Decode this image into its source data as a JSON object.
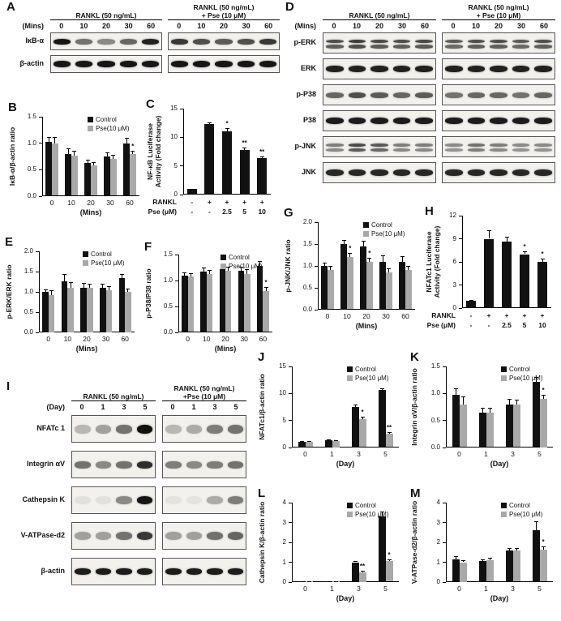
{
  "legend": {
    "control": "Control",
    "pse": "Pse(10 μM)"
  },
  "colors": {
    "control": "#111111",
    "pse": "#a9a9a9",
    "axis": "#000000"
  },
  "blots": [
    {
      "id": "A",
      "letter": "A",
      "time_label": "(Mins)",
      "groups": [
        {
          "title": [
            "RANKL (50 ng/mL)"
          ]
        },
        {
          "title": [
            "RANKL (50 ng/mL)",
            "+ Pse (10 μM)"
          ]
        }
      ],
      "lanes": [
        "0",
        "10",
        "20",
        "30",
        "60"
      ],
      "rows": [
        {
          "label": "IκB-α",
          "bh": 7,
          "double": false,
          "bands": [
            [
              0.95,
              0.55,
              0.45,
              0.6,
              0.9
            ],
            [
              0.8,
              0.7,
              0.65,
              0.7,
              0.8
            ]
          ]
        },
        {
          "label": "β-actin",
          "bh": 8,
          "double": false,
          "bands": [
            [
              0.95,
              0.95,
              0.95,
              0.95,
              0.95
            ],
            [
              0.95,
              0.95,
              0.95,
              0.95,
              0.95
            ]
          ]
        }
      ]
    },
    {
      "id": "D",
      "letter": "D",
      "time_label": "(Mins)",
      "groups": [
        {
          "title": [
            "RANKL (50 ng/mL)"
          ]
        },
        {
          "title": [
            "RANKL (50 ng/mL)",
            "+ Pse (10 μM)"
          ]
        }
      ],
      "lanes": [
        "0",
        "10",
        "20",
        "30",
        "60"
      ],
      "rows": [
        {
          "label": "p-ERK",
          "bh": 9,
          "double": true,
          "bands": [
            [
              0.7,
              0.78,
              0.72,
              0.7,
              0.72
            ],
            [
              0.65,
              0.7,
              0.7,
              0.65,
              0.7
            ]
          ]
        },
        {
          "label": "ERK",
          "bh": 8,
          "double": false,
          "bands": [
            [
              0.9,
              0.9,
              0.9,
              0.9,
              0.9
            ],
            [
              0.9,
              0.9,
              0.9,
              0.9,
              0.9
            ]
          ]
        },
        {
          "label": "p-P38",
          "bh": 7,
          "double": false,
          "bands": [
            [
              0.6,
              0.7,
              0.65,
              0.6,
              0.65
            ],
            [
              0.55,
              0.6,
              0.6,
              0.55,
              0.6
            ]
          ]
        },
        {
          "label": "P38",
          "bh": 8,
          "double": false,
          "bands": [
            [
              0.92,
              0.92,
              0.92,
              0.92,
              0.92
            ],
            [
              0.92,
              0.92,
              0.92,
              0.92,
              0.92
            ]
          ]
        },
        {
          "label": "p-JNK",
          "bh": 8,
          "double": true,
          "bands": [
            [
              0.5,
              0.72,
              0.66,
              0.5,
              0.5
            ],
            [
              0.45,
              0.55,
              0.5,
              0.45,
              0.45
            ]
          ]
        },
        {
          "label": "JNK",
          "bh": 8,
          "double": false,
          "bands": [
            [
              0.88,
              0.88,
              0.88,
              0.88,
              0.88
            ],
            [
              0.88,
              0.88,
              0.88,
              0.88,
              0.88
            ]
          ]
        }
      ]
    },
    {
      "id": "I",
      "letter": "I",
      "time_label": "(Day)",
      "groups": [
        {
          "title": [
            "RANKL (50 ng/mL)"
          ]
        },
        {
          "title": [
            "RANKL (50 ng/mL)",
            "+Pse (10 μM)"
          ]
        }
      ],
      "lanes": [
        "0",
        "1",
        "3",
        "5"
      ],
      "rows": [
        {
          "label": "NFATc 1",
          "bh": 11,
          "double": false,
          "bands": [
            [
              0.25,
              0.35,
              0.55,
              0.97
            ],
            [
              0.25,
              0.3,
              0.5,
              0.55
            ]
          ]
        },
        {
          "label": "Integrin αV",
          "bh": 9,
          "double": false,
          "bands": [
            [
              0.55,
              0.45,
              0.55,
              0.85
            ],
            [
              0.5,
              0.45,
              0.5,
              0.55
            ]
          ]
        },
        {
          "label": "Cathepsin K",
          "bh": 10,
          "double": false,
          "bands": [
            [
              0.07,
              0.07,
              0.45,
              0.95
            ],
            [
              0.06,
              0.06,
              0.3,
              0.5
            ]
          ]
        },
        {
          "label": "V-ATPase-d2",
          "bh": 10,
          "double": false,
          "bands": [
            [
              0.35,
              0.35,
              0.55,
              0.8
            ],
            [
              0.35,
              0.35,
              0.55,
              0.6
            ]
          ]
        },
        {
          "label": "β-actin",
          "bh": 8,
          "double": false,
          "bands": [
            [
              0.92,
              0.92,
              0.92,
              0.92
            ],
            [
              0.92,
              0.92,
              0.92,
              0.92
            ]
          ]
        }
      ]
    }
  ],
  "chart_data": [
    {
      "id": "B",
      "letter": "B",
      "type": "bar",
      "ylabel": "IκB-α/β-actin ratio",
      "xlabel": "(Mins)",
      "categories": [
        "0",
        "10",
        "20",
        "30",
        "60"
      ],
      "ylim": [
        0,
        1.5
      ],
      "yticks": [
        "0.0",
        "0.5",
        "1.0",
        "1.5"
      ],
      "legend": true,
      "series": [
        {
          "name": "Control",
          "color": "#111111",
          "values": [
            1.02,
            0.8,
            0.63,
            0.75,
            1.0
          ],
          "errors": [
            0.1,
            0.1,
            0.06,
            0.08,
            0.1
          ],
          "sig": [
            "",
            "",
            "",
            "",
            ""
          ]
        },
        {
          "name": "Pse(10 μM)",
          "color": "#a9a9a9",
          "values": [
            1.0,
            0.76,
            0.58,
            0.7,
            0.8
          ],
          "errors": [
            0.12,
            0.1,
            0.06,
            0.08,
            0.06
          ],
          "sig": [
            "",
            "",
            "",
            "",
            "*"
          ]
        }
      ]
    },
    {
      "id": "C",
      "letter": "C",
      "type": "bar",
      "ylabel": "NF-κB Luciferase\nActivity (Fold change)",
      "categories": [
        "1",
        "2",
        "3",
        "4",
        "5"
      ],
      "ylim": [
        0,
        15
      ],
      "yticks": [
        "0",
        "5",
        "10",
        "15"
      ],
      "legend": false,
      "series": [
        {
          "name": "",
          "color": "#111111",
          "values": [
            1.0,
            12.3,
            11.0,
            7.8,
            6.3
          ],
          "errors": [
            0.05,
            0.3,
            0.6,
            0.35,
            0.3
          ],
          "sig": [
            "",
            "",
            "*",
            "**",
            "**"
          ]
        }
      ],
      "xtable": [
        {
          "label": "RANKL",
          "values": [
            "-",
            "+",
            "+",
            "+",
            "+"
          ]
        },
        {
          "label": "Pse (μM)",
          "values": [
            "-",
            "-",
            "2.5",
            "5",
            "10"
          ]
        }
      ]
    },
    {
      "id": "E",
      "letter": "E",
      "type": "bar",
      "ylabel": "p-ERK/ERK ratio",
      "xlabel": "(Mins)",
      "categories": [
        "0",
        "10",
        "20",
        "30",
        "60"
      ],
      "ylim": [
        0,
        2.0
      ],
      "yticks": [
        "0.0",
        "0.5",
        "1.0",
        "1.5",
        "2.0"
      ],
      "legend": true,
      "series": [
        {
          "name": "Control",
          "color": "#111111",
          "values": [
            1.0,
            1.27,
            1.1,
            1.1,
            1.35
          ],
          "errors": [
            0.07,
            0.18,
            0.12,
            0.1,
            0.1
          ],
          "sig": [
            "",
            "",
            "",
            "",
            ""
          ]
        },
        {
          "name": "Pse(10 μM)",
          "color": "#a9a9a9",
          "values": [
            0.93,
            1.1,
            1.1,
            1.05,
            1.0
          ],
          "errors": [
            0.12,
            0.15,
            0.1,
            0.1,
            0.08
          ],
          "sig": [
            "",
            "",
            "",
            "",
            ""
          ]
        }
      ]
    },
    {
      "id": "F",
      "letter": "F",
      "type": "bar",
      "ylabel": "p-P38/P38 ratio",
      "xlabel": "(Mins)",
      "categories": [
        "0",
        "10",
        "20",
        "30",
        "60"
      ],
      "ylim": [
        0,
        1.5
      ],
      "yticks": [
        "0.0",
        "0.5",
        "1.0",
        "1.5"
      ],
      "legend": true,
      "series": [
        {
          "name": "Control",
          "color": "#111111",
          "values": [
            1.1,
            1.17,
            1.22,
            1.18,
            1.28
          ],
          "errors": [
            0.06,
            0.08,
            0.1,
            0.08,
            0.1
          ],
          "sig": [
            "",
            "",
            "",
            "",
            ""
          ]
        },
        {
          "name": "Pse(10 μM)",
          "color": "#a9a9a9",
          "values": [
            1.08,
            1.12,
            1.18,
            1.12,
            0.8
          ],
          "errors": [
            0.06,
            0.08,
            0.08,
            0.1,
            0.08
          ],
          "sig": [
            "",
            "",
            "",
            "",
            "*"
          ]
        }
      ]
    },
    {
      "id": "G",
      "letter": "G",
      "type": "bar",
      "ylabel": "p-JNK/JNK ratio",
      "xlabel": "(Mins)",
      "categories": [
        "0",
        "10",
        "20",
        "30",
        "60"
      ],
      "ylim": [
        0,
        2.0
      ],
      "yticks": [
        "0.0",
        "0.5",
        "1.0",
        "1.5",
        "2.0"
      ],
      "legend": true,
      "series": [
        {
          "name": "Control",
          "color": "#111111",
          "values": [
            1.0,
            1.5,
            1.45,
            1.1,
            1.1
          ],
          "errors": [
            0.08,
            0.1,
            0.12,
            0.15,
            0.12
          ],
          "sig": [
            "",
            "",
            "",
            "",
            ""
          ]
        },
        {
          "name": "Pse(10 μM)",
          "color": "#a9a9a9",
          "values": [
            0.9,
            1.2,
            1.1,
            0.85,
            0.9
          ],
          "errors": [
            0.1,
            0.1,
            0.08,
            0.1,
            0.1
          ],
          "sig": [
            "",
            "*",
            "*",
            "",
            ""
          ]
        }
      ]
    },
    {
      "id": "H",
      "letter": "H",
      "type": "bar",
      "ylabel": "NFATc1 Luciferase\nActivity (Fold change)",
      "categories": [
        "1",
        "2",
        "3",
        "4",
        "5"
      ],
      "ylim": [
        0,
        12
      ],
      "yticks": [
        "0",
        "3",
        "6",
        "9",
        "12"
      ],
      "legend": false,
      "series": [
        {
          "name": "",
          "color": "#111111",
          "values": [
            1.0,
            9.0,
            8.6,
            7.0,
            6.0
          ],
          "errors": [
            0.05,
            1.1,
            0.7,
            0.4,
            0.4
          ],
          "sig": [
            "",
            "",
            "",
            "*",
            "*"
          ]
        }
      ],
      "xtable": [
        {
          "label": "RANKL",
          "values": [
            "-",
            "+",
            "+",
            "+",
            "+"
          ]
        },
        {
          "label": "Pse (μM)",
          "values": [
            "-",
            "-",
            "2.5",
            "5",
            "10"
          ]
        }
      ]
    },
    {
      "id": "J",
      "letter": "J",
      "type": "bar",
      "ylabel": "NFATc1/β-actin ratio",
      "xlabel": "(Day)",
      "categories": [
        "0",
        "1",
        "3",
        "5"
      ],
      "ylim": [
        0,
        15
      ],
      "yticks": [
        "0",
        "5",
        "10",
        "15"
      ],
      "legend": true,
      "series": [
        {
          "name": "Control",
          "color": "#111111",
          "values": [
            1.0,
            1.3,
            7.5,
            10.7
          ],
          "errors": [
            0.15,
            0.2,
            0.4,
            0.3
          ],
          "sig": [
            "",
            "",
            "",
            ""
          ]
        },
        {
          "name": "Pse(10 μM)",
          "color": "#a9a9a9",
          "values": [
            1.0,
            1.2,
            5.3,
            2.6
          ],
          "errors": [
            0.15,
            0.2,
            0.4,
            0.3
          ],
          "sig": [
            "",
            "",
            "*",
            "**"
          ]
        }
      ]
    },
    {
      "id": "K",
      "letter": "K",
      "type": "bar",
      "ylabel": "Integrin αV/β-actin ratio",
      "xlabel": "(Day)",
      "categories": [
        "0",
        "1",
        "3",
        "5"
      ],
      "ylim": [
        0,
        1.5
      ],
      "yticks": [
        "0.0",
        "0.5",
        "1.0",
        "1.5"
      ],
      "legend": true,
      "series": [
        {
          "name": "Control",
          "color": "#111111",
          "values": [
            0.97,
            0.65,
            0.8,
            1.22
          ],
          "errors": [
            0.12,
            0.08,
            0.1,
            0.08
          ],
          "sig": [
            "",
            "",
            "",
            ""
          ]
        },
        {
          "name": "Pse(10 μM)",
          "color": "#a9a9a9",
          "values": [
            0.8,
            0.65,
            0.8,
            0.9
          ],
          "errors": [
            0.15,
            0.08,
            0.08,
            0.07
          ],
          "sig": [
            "",
            "",
            "",
            "*"
          ]
        }
      ]
    },
    {
      "id": "L",
      "letter": "L",
      "type": "bar",
      "ylabel": "Cathepsin K/β-actin ratio",
      "xlabel": "(Day)",
      "categories": [
        "0",
        "1",
        "3",
        "5"
      ],
      "ylim": [
        0,
        4
      ],
      "yticks": [
        "0",
        "1",
        "2",
        "3",
        "4"
      ],
      "legend": true,
      "series": [
        {
          "name": "Control",
          "color": "#111111",
          "values": [
            0.05,
            0.05,
            1.0,
            3.3
          ],
          "errors": [
            0.01,
            0.01,
            0.08,
            0.25
          ],
          "sig": [
            "",
            "",
            "",
            ""
          ]
        },
        {
          "name": "Pse(10 μM)",
          "color": "#a9a9a9",
          "values": [
            0.03,
            0.03,
            0.5,
            1.05
          ],
          "errors": [
            0.01,
            0.01,
            0.06,
            0.1
          ],
          "sig": [
            "",
            "",
            "**",
            "*"
          ]
        }
      ]
    },
    {
      "id": "M",
      "letter": "M",
      "type": "bar",
      "ylabel": "V-ATPase-d2/β-actin ratio",
      "xlabel": "(Day)",
      "categories": [
        "0",
        "1",
        "3",
        "5"
      ],
      "ylim": [
        0,
        4
      ],
      "yticks": [
        "0",
        "1",
        "2",
        "3",
        "4"
      ],
      "legend": true,
      "series": [
        {
          "name": "Control",
          "color": "#111111",
          "values": [
            1.15,
            1.05,
            1.6,
            2.6
          ],
          "errors": [
            0.15,
            0.1,
            0.1,
            0.45
          ],
          "sig": [
            "",
            "",
            "",
            ""
          ]
        },
        {
          "name": "Pse(10 μM)",
          "color": "#a9a9a9",
          "values": [
            1.0,
            1.1,
            1.6,
            1.65
          ],
          "errors": [
            0.1,
            0.12,
            0.12,
            0.15
          ],
          "sig": [
            "",
            "",
            "",
            "*"
          ]
        }
      ]
    }
  ]
}
